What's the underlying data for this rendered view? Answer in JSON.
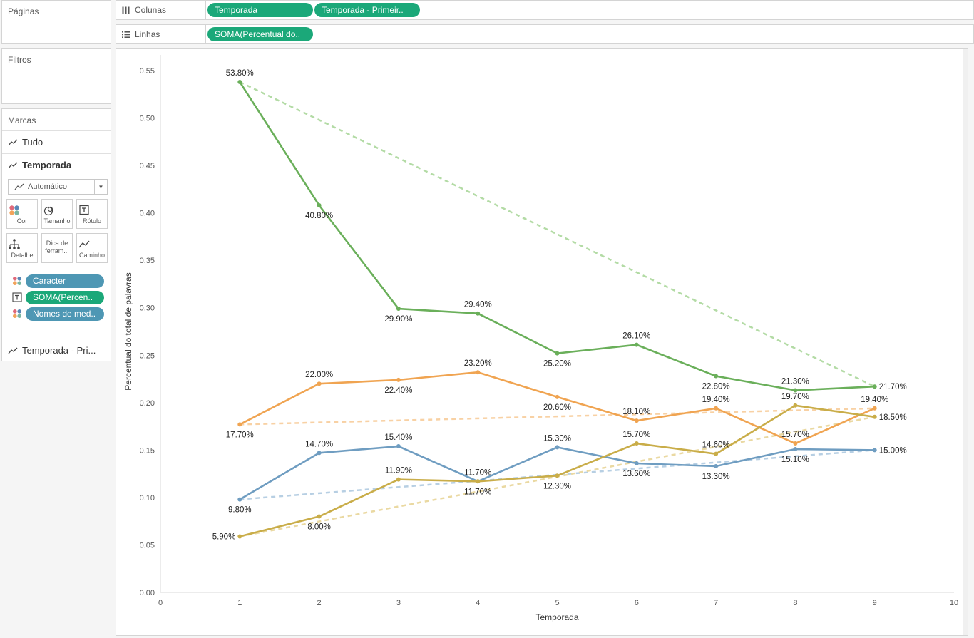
{
  "sidebar": {
    "pages_title": "Páginas",
    "filters_title": "Filtros",
    "marks_title": "Marcas",
    "marks_tabs": [
      "Tudo",
      "Temporada"
    ],
    "mark_type": "Automático",
    "buttons": {
      "color": "Cor",
      "size": "Tamanho",
      "label": "Rótulo",
      "detail": "Detalhe",
      "tooltip": "Dica de ferram...",
      "path": "Caminho"
    },
    "pills": [
      "Caracter",
      "SOMA(Percen..",
      "Nomes de med.."
    ],
    "bottom_tab": "Temporada - Pri..."
  },
  "shelves": {
    "columns_label": "Colunas",
    "columns_pills": [
      "Temporada",
      "Temporada - Primeir.."
    ],
    "rows_label": "Linhas",
    "rows_pills": [
      "SOMA(Percentual do.."
    ]
  },
  "chart_data": {
    "type": "line",
    "xlabel": "Temporada",
    "ylabel": "Percentual do total de palavras",
    "xlim": [
      0,
      10
    ],
    "ylim": [
      0,
      0.55
    ],
    "xticks": [
      "0",
      "1",
      "2",
      "3",
      "4",
      "5",
      "6",
      "7",
      "8",
      "9",
      "10"
    ],
    "yticks": [
      "0.00",
      "0.05",
      "0.10",
      "0.15",
      "0.20",
      "0.25",
      "0.30",
      "0.35",
      "0.40",
      "0.45",
      "0.50",
      "0.55"
    ],
    "x": [
      1,
      2,
      3,
      4,
      5,
      6,
      7,
      8,
      9
    ],
    "series": [
      {
        "color": "#6aaf5a",
        "values": [
          0.538,
          0.408,
          0.299,
          0.294,
          0.252,
          0.261,
          0.228,
          0.213,
          0.217
        ],
        "labels": [
          "53.80%",
          "40.80%",
          "29.90%",
          "29.40%",
          "25.20%",
          "26.10%",
          "22.80%",
          "21.30%",
          "21.70%"
        ],
        "label_pos": [
          "above",
          "below",
          "below",
          "above",
          "below",
          "above",
          "below",
          "above",
          "right"
        ],
        "dashed_color": "#b3dba5",
        "dashed": [
          [
            1,
            0.538
          ],
          [
            9,
            0.217
          ]
        ]
      },
      {
        "color": "#f0a451",
        "values": [
          0.177,
          0.22,
          0.224,
          0.232,
          0.206,
          0.181,
          0.194,
          0.157,
          0.194
        ],
        "labels": [
          "17.70%",
          "22.00%",
          "22.40%",
          "23.20%",
          "20.60%",
          "18.10%",
          "19.40%",
          "15.70%",
          "19.40%"
        ],
        "label_pos": [
          "below",
          "above",
          "below",
          "above",
          "below",
          "above",
          "above",
          "above",
          "above"
        ],
        "dashed_color": "#f8d1a4",
        "dashed": [
          [
            1,
            0.177
          ],
          [
            9,
            0.194
          ]
        ]
      },
      {
        "color": "#6f9dc1",
        "values": [
          0.098,
          0.147,
          0.154,
          0.117,
          0.153,
          0.136,
          0.133,
          0.151,
          0.15
        ],
        "labels": [
          "9.80%",
          "14.70%",
          "15.40%",
          "11.70%",
          "15.30%",
          "13.60%",
          "13.30%",
          "15.10%",
          "15.00%"
        ],
        "label_pos": [
          "below",
          "above",
          "above",
          "above",
          "above",
          "below",
          "below",
          "below",
          "right"
        ],
        "dashed_color": "#b7cfe3",
        "dashed": [
          [
            1,
            0.098
          ],
          [
            9,
            0.15
          ]
        ]
      },
      {
        "color": "#c9ad49",
        "values": [
          0.059,
          0.08,
          0.119,
          0.117,
          0.123,
          0.157,
          0.146,
          0.197,
          0.185
        ],
        "labels": [
          "5.90%",
          "8.00%",
          "11.90%",
          "11.70%",
          "12.30%",
          "15.70%",
          "14.60%",
          "19.70%",
          "18.50%"
        ],
        "label_pos": [
          "left",
          "below",
          "above",
          "below",
          "below",
          "above",
          "above",
          "above",
          "right"
        ],
        "dashed_color": "#ead9a2",
        "dashed": [
          [
            1,
            0.059
          ],
          [
            9,
            0.185
          ]
        ]
      }
    ]
  }
}
